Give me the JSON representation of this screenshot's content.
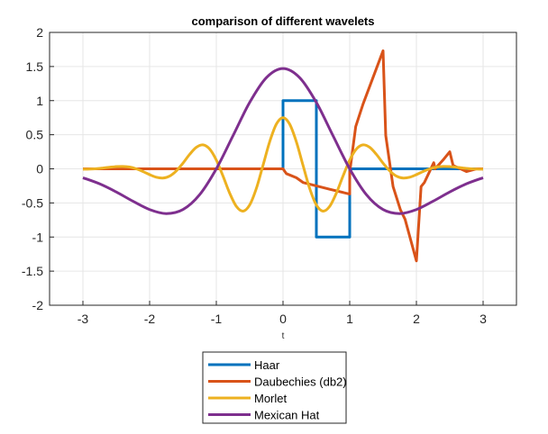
{
  "chart_data": {
    "type": "line",
    "title": "comparison of different wavelets",
    "xlabel": "t",
    "ylabel": "",
    "xlim": [
      -3.5,
      3.5
    ],
    "ylim": [
      -2,
      2
    ],
    "xticks": [
      -3,
      -2,
      -1,
      0,
      1,
      2,
      3
    ],
    "xtick_labels": [
      "-3",
      "-2",
      "-1",
      "0",
      "1",
      "2",
      "3"
    ],
    "yticks": [
      -2,
      -1.5,
      -1,
      -0.5,
      0,
      0.5,
      1,
      1.5,
      2
    ],
    "ytick_labels": [
      "-2",
      "-1.5",
      "-1",
      "-0.5",
      "0",
      "0.5",
      "1",
      "1.5",
      "2"
    ],
    "grid": true,
    "legend_position": "below",
    "series": [
      {
        "name": "Haar",
        "color": "#0072BD",
        "smooth": false,
        "x": [
          -3,
          0,
          0,
          0.5,
          0.5,
          1,
          1,
          3
        ],
        "y": [
          0,
          0,
          1,
          1,
          -1,
          -1,
          0,
          0
        ]
      },
      {
        "name": "Daubechies (db2)",
        "color": "#D95319",
        "smooth": false,
        "x": [
          -3,
          0,
          0.05,
          0.2,
          0.3,
          0.5,
          0.7,
          1.0,
          1.0,
          1.09,
          1.2,
          1.25,
          1.5,
          1.54,
          1.65,
          1.76,
          1.83,
          2.0,
          2.07,
          2.12,
          2.26,
          2.28,
          2.4,
          2.5,
          2.55,
          2.75,
          2.9,
          3.0
        ],
        "y": [
          0,
          0,
          -0.07,
          -0.13,
          -0.2,
          -0.25,
          -0.3,
          -0.37,
          -0.05,
          0.62,
          0.95,
          1.08,
          1.73,
          0.49,
          -0.26,
          -0.6,
          -0.74,
          -1.35,
          -0.26,
          -0.2,
          0.09,
          0,
          0.13,
          0.25,
          0.05,
          -0.04,
          0,
          0
        ]
      },
      {
        "name": "Morlet",
        "color": "#EDB120",
        "smooth": true,
        "x": [
          -3,
          -2.9,
          -2.8,
          -2.7,
          -2.6,
          -2.5,
          -2.4,
          -2.3,
          -2.2,
          -2.1,
          -2,
          -1.9,
          -1.8,
          -1.7,
          -1.6,
          -1.5,
          -1.4,
          -1.3,
          -1.2,
          -1.1,
          -1,
          -0.9,
          -0.8,
          -0.7,
          -0.6,
          -0.5,
          -0.4,
          -0.3,
          -0.2,
          -0.1,
          0,
          0.1,
          0.2,
          0.3,
          0.4,
          0.5,
          0.6,
          0.7,
          0.8,
          0.9,
          1,
          1.1,
          1.2,
          1.3,
          1.4,
          1.5,
          1.6,
          1.7,
          1.8,
          1.9,
          2,
          2.1,
          2.2,
          2.3,
          2.4,
          2.5,
          2.6,
          2.7,
          2.8,
          2.9,
          3
        ],
        "y": [
          -0.006,
          -0.004,
          0.002,
          0.012,
          0.023,
          0.033,
          0.035,
          0.026,
          0,
          -0.039,
          -0.085,
          -0.123,
          -0.135,
          -0.106,
          -0.03,
          0.084,
          0.212,
          0.315,
          0.351,
          0.29,
          0.129,
          -0.105,
          -0.356,
          -0.55,
          -0.62,
          -0.53,
          -0.288,
          0.051,
          0.397,
          0.655,
          0.75,
          0.655,
          0.397,
          0.051,
          -0.288,
          -0.53,
          -0.62,
          -0.55,
          -0.356,
          -0.105,
          0.129,
          0.29,
          0.351,
          0.315,
          0.212,
          0.084,
          -0.03,
          -0.106,
          -0.135,
          -0.123,
          -0.085,
          -0.039,
          0,
          0.026,
          0.035,
          0.033,
          0.023,
          0.012,
          0.002,
          -0.004,
          -0.006
        ]
      },
      {
        "name": "Mexican Hat",
        "color": "#7E2F8E",
        "smooth": true,
        "x": [
          -3,
          -2.75,
          -2.5,
          -2.25,
          -2,
          -1.75,
          -1.5,
          -1.25,
          -1,
          -0.75,
          -0.5,
          -0.25,
          0,
          0.25,
          0.5,
          0.75,
          1,
          1.25,
          1.5,
          1.75,
          2,
          2.25,
          2.5,
          2.75,
          3
        ],
        "y": [
          -0.131,
          -0.22,
          -0.339,
          -0.475,
          -0.597,
          -0.656,
          -0.597,
          -0.379,
          0,
          0.485,
          0.973,
          1.336,
          1.47,
          1.336,
          0.973,
          0.485,
          0,
          -0.379,
          -0.597,
          -0.656,
          -0.597,
          -0.475,
          -0.339,
          -0.22,
          -0.131
        ]
      }
    ]
  }
}
